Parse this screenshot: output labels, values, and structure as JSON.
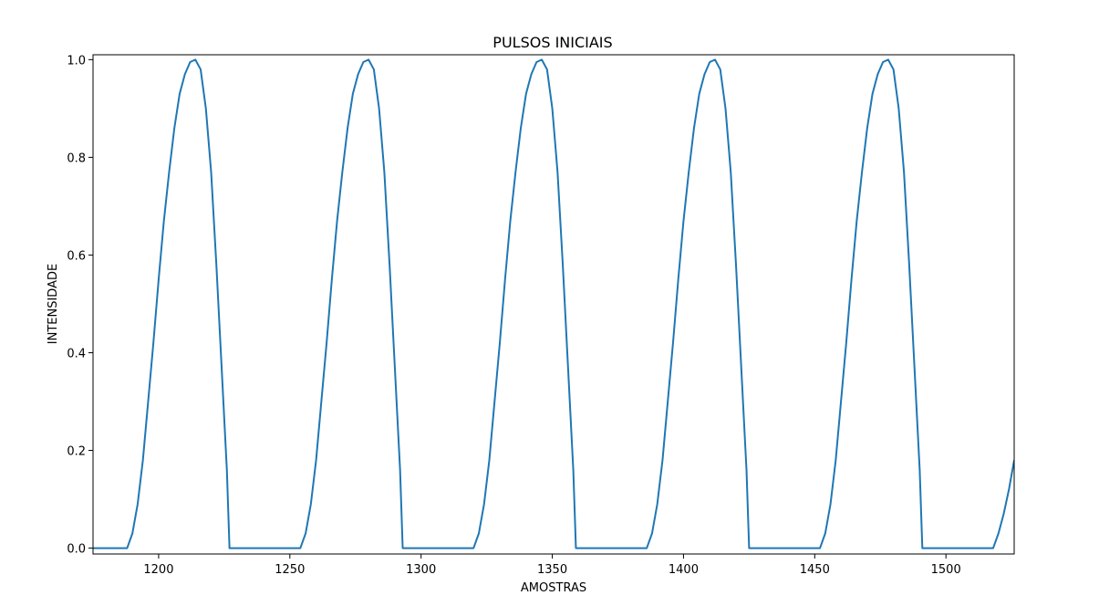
{
  "chart_data": {
    "type": "line",
    "title": "PULSOS INICIAIS",
    "xlabel": "AMOSTRAS",
    "ylabel": "INTENSIDADE",
    "xlim": [
      1175,
      1526
    ],
    "ylim": [
      -0.012,
      1.01
    ],
    "x_ticks": [
      1200,
      1250,
      1300,
      1350,
      1400,
      1450,
      1500
    ],
    "x_tick_labels": [
      "1200",
      "1250",
      "1300",
      "1350",
      "1400",
      "1450",
      "1500"
    ],
    "y_ticks": [
      0.0,
      0.2,
      0.4,
      0.6,
      0.8,
      1.0
    ],
    "y_tick_labels": [
      "0.0",
      "0.2",
      "0.4",
      "0.6",
      "0.8",
      "1.0"
    ],
    "grid": false,
    "series": [
      {
        "color": "#1f77b4",
        "points": [
          [
            1175,
            0.0
          ],
          [
            1188,
            0.0
          ],
          [
            1190,
            0.03
          ],
          [
            1192,
            0.09
          ],
          [
            1194,
            0.18
          ],
          [
            1196,
            0.3
          ],
          [
            1198,
            0.42
          ],
          [
            1200,
            0.55
          ],
          [
            1202,
            0.67
          ],
          [
            1204,
            0.77
          ],
          [
            1206,
            0.86
          ],
          [
            1208,
            0.93
          ],
          [
            1210,
            0.97
          ],
          [
            1212,
            0.995
          ],
          [
            1214,
            1.0
          ],
          [
            1216,
            0.98
          ],
          [
            1218,
            0.9
          ],
          [
            1220,
            0.77
          ],
          [
            1222,
            0.58
          ],
          [
            1224,
            0.37
          ],
          [
            1226,
            0.16
          ],
          [
            1227,
            0.0
          ],
          [
            1254,
            0.0
          ],
          [
            1256,
            0.03
          ],
          [
            1258,
            0.09
          ],
          [
            1260,
            0.18
          ],
          [
            1262,
            0.3
          ],
          [
            1264,
            0.42
          ],
          [
            1266,
            0.55
          ],
          [
            1268,
            0.67
          ],
          [
            1270,
            0.77
          ],
          [
            1272,
            0.86
          ],
          [
            1274,
            0.93
          ],
          [
            1276,
            0.97
          ],
          [
            1278,
            0.995
          ],
          [
            1280,
            1.0
          ],
          [
            1282,
            0.98
          ],
          [
            1284,
            0.9
          ],
          [
            1286,
            0.77
          ],
          [
            1288,
            0.58
          ],
          [
            1290,
            0.37
          ],
          [
            1292,
            0.16
          ],
          [
            1293,
            0.0
          ],
          [
            1320,
            0.0
          ],
          [
            1322,
            0.03
          ],
          [
            1324,
            0.09
          ],
          [
            1326,
            0.18
          ],
          [
            1328,
            0.3
          ],
          [
            1330,
            0.42
          ],
          [
            1332,
            0.55
          ],
          [
            1334,
            0.67
          ],
          [
            1336,
            0.77
          ],
          [
            1338,
            0.86
          ],
          [
            1340,
            0.93
          ],
          [
            1342,
            0.97
          ],
          [
            1344,
            0.995
          ],
          [
            1346,
            1.0
          ],
          [
            1348,
            0.98
          ],
          [
            1350,
            0.9
          ],
          [
            1352,
            0.77
          ],
          [
            1354,
            0.58
          ],
          [
            1356,
            0.37
          ],
          [
            1358,
            0.16
          ],
          [
            1359,
            0.0
          ],
          [
            1386,
            0.0
          ],
          [
            1388,
            0.03
          ],
          [
            1390,
            0.09
          ],
          [
            1392,
            0.18
          ],
          [
            1394,
            0.3
          ],
          [
            1396,
            0.42
          ],
          [
            1398,
            0.55
          ],
          [
            1400,
            0.67
          ],
          [
            1402,
            0.77
          ],
          [
            1404,
            0.86
          ],
          [
            1406,
            0.93
          ],
          [
            1408,
            0.97
          ],
          [
            1410,
            0.995
          ],
          [
            1412,
            1.0
          ],
          [
            1414,
            0.98
          ],
          [
            1416,
            0.9
          ],
          [
            1418,
            0.77
          ],
          [
            1420,
            0.58
          ],
          [
            1422,
            0.37
          ],
          [
            1424,
            0.16
          ],
          [
            1425,
            0.0
          ],
          [
            1452,
            0.0
          ],
          [
            1454,
            0.03
          ],
          [
            1456,
            0.09
          ],
          [
            1458,
            0.18
          ],
          [
            1460,
            0.3
          ],
          [
            1462,
            0.42
          ],
          [
            1464,
            0.55
          ],
          [
            1466,
            0.67
          ],
          [
            1468,
            0.77
          ],
          [
            1470,
            0.86
          ],
          [
            1472,
            0.93
          ],
          [
            1474,
            0.97
          ],
          [
            1476,
            0.995
          ],
          [
            1478,
            1.0
          ],
          [
            1480,
            0.98
          ],
          [
            1482,
            0.9
          ],
          [
            1484,
            0.77
          ],
          [
            1486,
            0.58
          ],
          [
            1488,
            0.37
          ],
          [
            1490,
            0.16
          ],
          [
            1491,
            0.0
          ],
          [
            1518,
            0.0
          ],
          [
            1520,
            0.03
          ],
          [
            1522,
            0.07
          ],
          [
            1524,
            0.12
          ],
          [
            1526,
            0.18
          ]
        ]
      }
    ]
  }
}
